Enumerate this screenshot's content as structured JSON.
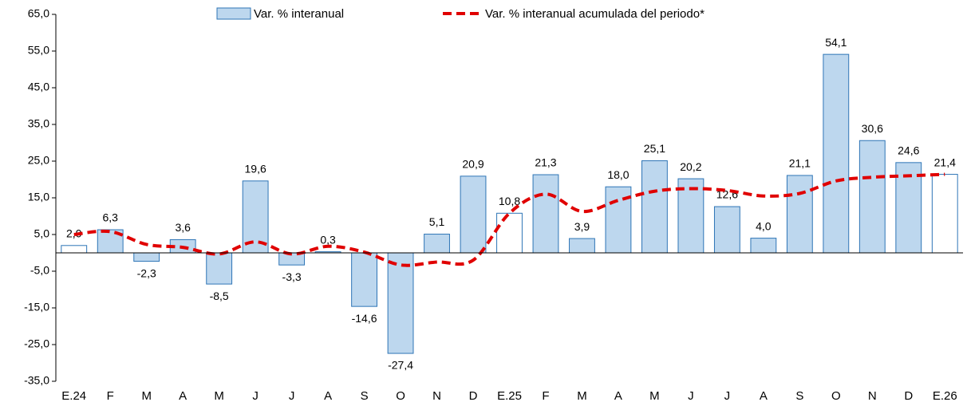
{
  "chart_data": {
    "type": "bar_line",
    "categories": [
      "E.24",
      "F",
      "M",
      "A",
      "M",
      "J",
      "J",
      "A",
      "S",
      "O",
      "N",
      "D",
      "E.25",
      "F",
      "M",
      "A",
      "M",
      "J",
      "J",
      "A",
      "S",
      "O",
      "N",
      "D",
      "E.26"
    ],
    "series": [
      {
        "name": "Var. % interanual",
        "type": "bar",
        "color": "#bdd7ee",
        "edge_color": "#2e75b6",
        "bar_colors": [
          "#ffffff",
          "#bdd7ee",
          "#bdd7ee",
          "#bdd7ee",
          "#bdd7ee",
          "#bdd7ee",
          "#bdd7ee",
          "#bdd7ee",
          "#bdd7ee",
          "#bdd7ee",
          "#bdd7ee",
          "#bdd7ee",
          "#ffffff",
          "#bdd7ee",
          "#bdd7ee",
          "#bdd7ee",
          "#bdd7ee",
          "#bdd7ee",
          "#bdd7ee",
          "#bdd7ee",
          "#bdd7ee",
          "#bdd7ee",
          "#bdd7ee",
          "#bdd7ee",
          "#ffffff"
        ],
        "values": [
          2.0,
          6.3,
          -2.3,
          3.6,
          -8.5,
          19.6,
          -3.3,
          0.3,
          -14.6,
          -27.4,
          5.1,
          20.9,
          10.8,
          21.3,
          3.9,
          18.0,
          25.1,
          20.2,
          12.6,
          4.0,
          21.1,
          54.1,
          30.6,
          24.6,
          21.4
        ],
        "value_labels": [
          "2,0",
          "6,3",
          "-2,3",
          "3,6",
          "-8,5",
          "19,6",
          "-3,3",
          "0,3",
          "-14,6",
          "-27,4",
          "5,1",
          "20,9",
          "10,8",
          "21,3",
          "3,9",
          "18,0",
          "25,1",
          "20,2",
          "12,6",
          "4,0",
          "21,1",
          "54,1",
          "30,6",
          "24,6",
          "21,4"
        ]
      },
      {
        "name": "Var. % interanual acumulada del periodo*",
        "type": "line",
        "color": "#e00000",
        "dashed": true,
        "values": [
          5.0,
          5.8,
          2.3,
          1.5,
          -0.3,
          3.0,
          -0.3,
          1.8,
          0.2,
          -3.3,
          -2.5,
          -2.0,
          10.8,
          16.0,
          11.3,
          14.3,
          16.8,
          17.5,
          17.0,
          15.5,
          16.2,
          19.6,
          20.6,
          21.0,
          21.4
        ]
      }
    ],
    "ylim": [
      -35,
      65
    ],
    "yticks": [
      {
        "value": -35,
        "label": "-35,0"
      },
      {
        "value": -25,
        "label": "-25,0"
      },
      {
        "value": -15,
        "label": "-15,0"
      },
      {
        "value": -5,
        "label": "-5,0"
      },
      {
        "value": 5,
        "label": "5,0"
      },
      {
        "value": 15,
        "label": "15,0"
      },
      {
        "value": 25,
        "label": "25,0"
      },
      {
        "value": 35,
        "label": "35,0"
      },
      {
        "value": 45,
        "label": "45,0"
      },
      {
        "value": 55,
        "label": "55,0"
      },
      {
        "value": 65,
        "label": "65,0"
      }
    ],
    "grid": false,
    "legend": "top"
  }
}
